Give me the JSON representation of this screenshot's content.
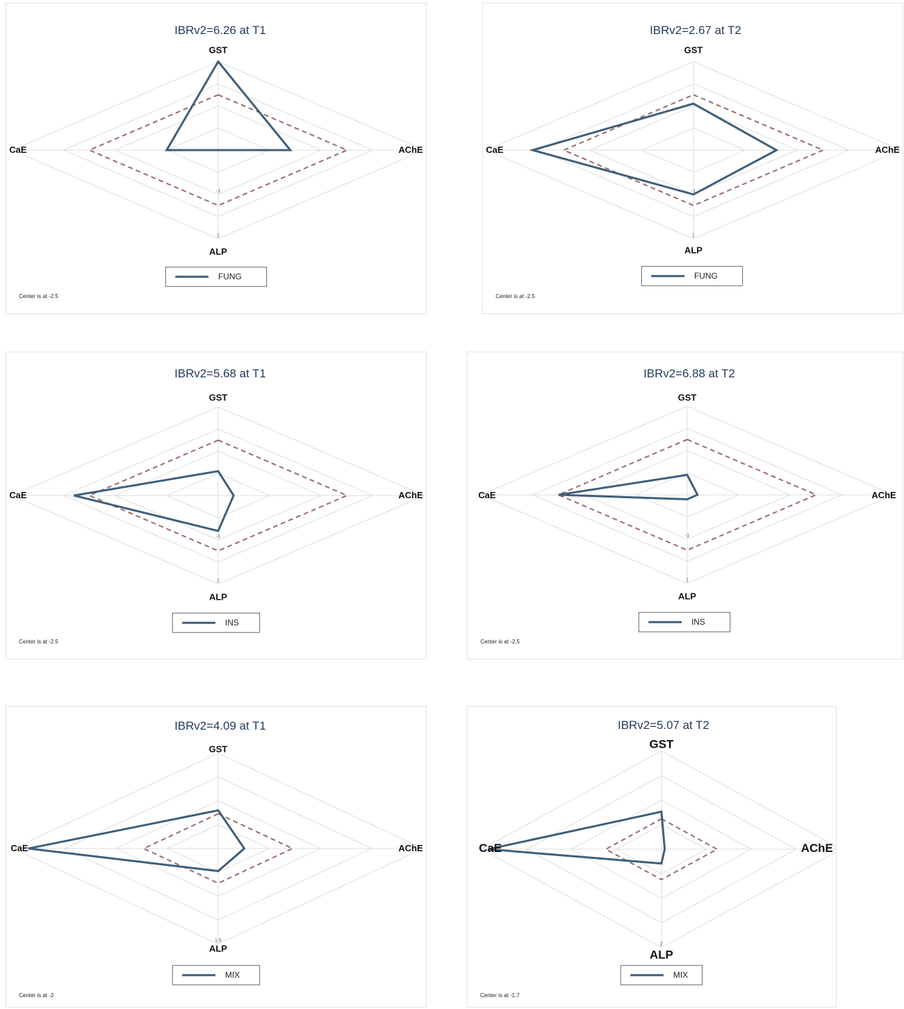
{
  "chart_data": [
    {
      "type": "radar",
      "title": "IBRv2=6.26 at T1",
      "axes": [
        "GST",
        "AChE",
        "ALP",
        "CaE"
      ],
      "center": -2.5,
      "tick_labels": [
        "-1",
        "1"
      ],
      "series": [
        {
          "name": "FUNG",
          "values": [
            1.5,
            -1.1,
            -2.5,
            -1.5
          ],
          "color": "#3f5f7a"
        },
        {
          "values": [
            0,
            0,
            0,
            0
          ],
          "color": "#9b6a6a",
          "style": "dashed"
        }
      ],
      "note": "Center is at -2.5",
      "colors": {
        "series": "#3f5f7a",
        "reference": "#9b6a6a",
        "grid": "#dddddd",
        "title": "#1f3a5f"
      }
    },
    {
      "type": "radar",
      "title": "IBRv2=2.67 at T2",
      "axes": [
        "GST",
        "AChE",
        "ALP",
        "CaE"
      ],
      "center": -2.5,
      "tick_labels": [
        "-1",
        "1"
      ],
      "series": [
        {
          "name": "FUNG",
          "values": [
            -0.4,
            -0.9,
            -0.5,
            0.6
          ],
          "color": "#3f5f7a"
        },
        {
          "values": [
            0,
            0,
            0,
            0
          ],
          "color": "#9b6a6a",
          "style": "dashed"
        }
      ],
      "note": "Center is at -2.5",
      "colors": {
        "series": "#3f5f7a",
        "reference": "#9b6a6a",
        "grid": "#dddddd",
        "title": "#1f3a5f"
      }
    },
    {
      "type": "radar",
      "title": "IBRv2=5.68 at T1",
      "axes": [
        "GST",
        "AChE",
        "ALP",
        "CaE"
      ],
      "center": -2.5,
      "tick_labels": [
        "-1",
        "1"
      ],
      "series": [
        {
          "name": "INS",
          "values": [
            -1.4,
            -2.2,
            -0.9,
            0.3
          ],
          "color": "#3f5f7a"
        },
        {
          "values": [
            0,
            0,
            0,
            0
          ],
          "color": "#9b6a6a",
          "style": "dashed"
        }
      ],
      "note": "Center is at -2.5",
      "colors": {
        "series": "#3f5f7a",
        "reference": "#9b6a6a",
        "grid": "#dddddd",
        "title": "#1f3a5f"
      }
    },
    {
      "type": "radar",
      "title": "IBRv2=6.88 at T2",
      "axes": [
        "GST",
        "AChE",
        "ALP",
        "CaE"
      ],
      "center": -2.5,
      "tick_labels": [
        "-1",
        "1"
      ],
      "series": [
        {
          "name": "INS",
          "values": [
            -1.6,
            -2.3,
            -2.3,
            0.0
          ],
          "color": "#3f5f7a"
        },
        {
          "values": [
            0,
            0,
            0,
            0
          ],
          "color": "#9b6a6a",
          "style": "dashed"
        }
      ],
      "note": "Center is at -2.5",
      "colors": {
        "series": "#3f5f7a",
        "reference": "#9b6a6a",
        "grid": "#dddddd",
        "title": "#1f3a5f"
      }
    },
    {
      "type": "radar",
      "title": "IBRv2=4.09 at T1",
      "axes": [
        "GST",
        "AChE",
        "ALP",
        "CaE"
      ],
      "center": -2,
      "tick_labels": [
        "1.5"
      ],
      "series": [
        {
          "name": "MIX",
          "values": [
            0.2,
            -1.3,
            -0.7,
            3.1
          ],
          "color": "#3f5f7a"
        },
        {
          "values": [
            0,
            0,
            0,
            0
          ],
          "color": "#9b6a6a",
          "style": "dashed"
        }
      ],
      "note": "Center is at -2",
      "colors": {
        "series": "#3f5f7a",
        "reference": "#9b6a6a",
        "grid": "#dddddd",
        "title": "#1f3a5f"
      }
    },
    {
      "type": "radar",
      "title": "IBRv2=5.07 at T2",
      "axes": [
        "GST",
        "AChE",
        "ALP",
        "CaE"
      ],
      "center": -1.7,
      "tick_labels": [
        "2"
      ],
      "series": [
        {
          "name": "MIX",
          "values": [
            0.4,
            -1.6,
            -0.9,
            3.6
          ],
          "color": "#3f5f7a"
        },
        {
          "values": [
            0,
            0,
            0,
            0
          ],
          "color": "#9b6a6a",
          "style": "dashed"
        }
      ],
      "note": "Center is at -1.7",
      "colors": {
        "series": "#3f5f7a",
        "reference": "#9b6a6a",
        "grid": "#dddddd",
        "title": "#1f3a5f"
      }
    }
  ]
}
